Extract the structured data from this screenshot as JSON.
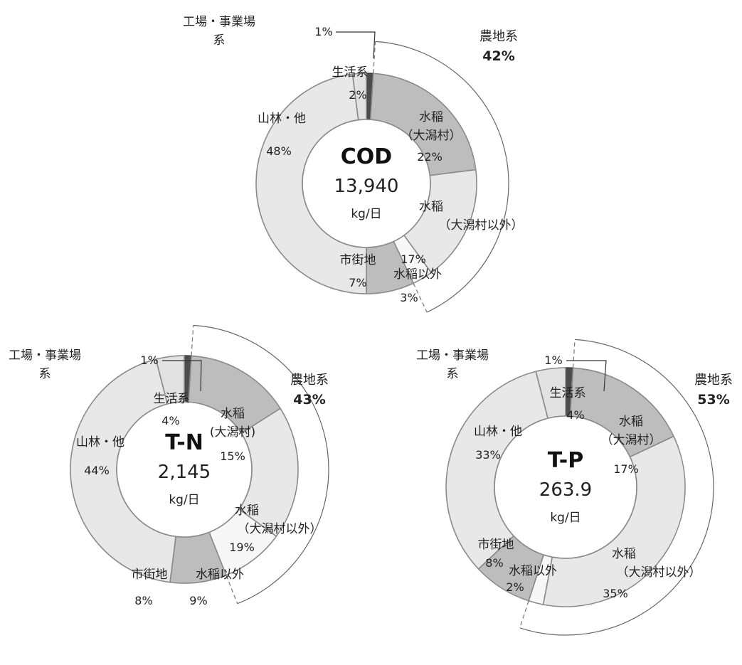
{
  "chart_data": [
    {
      "type": "pie",
      "title": "COD",
      "total": "13,940",
      "unit": "kg/日",
      "categories": [
        "工場・事業場系",
        "水稲(大潟村)",
        "水稲(大潟村以外)",
        "水稲以外",
        "市街地",
        "山林・他",
        "生活系"
      ],
      "values": [
        1,
        22,
        17,
        3,
        7,
        48,
        2
      ],
      "labels": {
        "factory": {
          "name": "工場・事業場",
          "name2": "系",
          "pct": "1%"
        },
        "paddy_ogata": {
          "name": "水稲",
          "name2": "（大潟村）",
          "pct": "22%"
        },
        "paddy_other": {
          "name": "水稲",
          "name2": "（大潟村以外）",
          "pct": "17%"
        },
        "non_paddy": {
          "name": "水稲以外",
          "pct": "3%"
        },
        "urban": {
          "name": "市街地",
          "pct": "7%"
        },
        "forest": {
          "name": "山林・他",
          "pct": "48%"
        },
        "domestic": {
          "name": "生活系",
          "pct": "2%"
        }
      },
      "agriculture": {
        "name": "農地系",
        "pct": "42%"
      }
    },
    {
      "type": "pie",
      "title": "T-N",
      "total": "2,145",
      "unit": "kg/日",
      "categories": [
        "工場・事業場系",
        "水稲(大潟村)",
        "水稲(大潟村以外)",
        "水稲以外",
        "市街地",
        "山林・他",
        "生活系"
      ],
      "values": [
        1,
        15,
        19,
        9,
        8,
        44,
        4
      ],
      "labels": {
        "factory": {
          "name": "工場・事業場",
          "name2": "系",
          "pct": "1%"
        },
        "paddy_ogata": {
          "name": "水稲",
          "name2": "(大潟村)",
          "pct": "15%"
        },
        "paddy_other": {
          "name": "水稲",
          "name2": "（大潟村以外）",
          "pct": "19%"
        },
        "non_paddy": {
          "name": "水稲以外",
          "pct": "9%"
        },
        "urban": {
          "name": "市街地",
          "pct": "8%"
        },
        "forest": {
          "name": "山林・他",
          "pct": "44%"
        },
        "domestic": {
          "name": "生活系",
          "pct": "4%"
        }
      },
      "agriculture": {
        "name": "農地系",
        "pct": "43%"
      }
    },
    {
      "type": "pie",
      "title": "T-P",
      "total": "263.9",
      "unit": "kg/日",
      "categories": [
        "工場・事業場系",
        "水稲(大潟村)",
        "水稲(大潟村以外)",
        "水稲以外",
        "市街地",
        "山林・他",
        "生活系"
      ],
      "values": [
        1,
        17,
        35,
        2,
        8,
        33,
        4
      ],
      "labels": {
        "factory": {
          "name": "工場・事業場",
          "name2": "系",
          "pct": "1%"
        },
        "paddy_ogata": {
          "name": "水稲",
          "name2": "（大潟村）",
          "pct": "17%"
        },
        "paddy_other": {
          "name": "水稲",
          "name2": "（大潟村以外）",
          "pct": "35%"
        },
        "non_paddy": {
          "name": "水稲以外",
          "pct": "2%"
        },
        "urban": {
          "name": "市街地",
          "pct": "8%"
        },
        "forest": {
          "name": "山林・他",
          "pct": "33%"
        },
        "domestic": {
          "name": "生活系",
          "pct": "4%"
        }
      },
      "agriculture": {
        "name": "農地系",
        "pct": "53%"
      }
    }
  ],
  "colors": {
    "factory": "#4d4d4d",
    "paddy_ogata": "#bdbdbd",
    "paddy_other": "#e8e8e8",
    "non_paddy": "#f7f7f7",
    "urban": "#bdbdbd",
    "forest": "#e8e8e8",
    "domestic": "#e2e2e2",
    "stroke": "#8a8a8a"
  }
}
